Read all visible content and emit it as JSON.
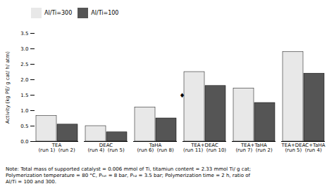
{
  "chart_data": {
    "type": "bar",
    "categories": [
      "TEA\n(run 1)  (run 2)",
      "DEAC\n(run 4)  (run 5)",
      "TaHA\n(run 6)  (run 8)",
      "TEA+DEAC\n(run 11)  (run 10)",
      "TEA+TaHA\n(run 7)  (run 2)",
      "TEA+DEAC+TaHA\n(run 5)  (run 4)"
    ],
    "series": [
      {
        "name": "Al/Ti=300",
        "color": "#e8e8e8",
        "values": [
          0.83,
          0.5,
          1.1,
          2.25,
          1.72,
          2.9
        ]
      },
      {
        "name": "Al/Ti=100",
        "color": "#555555",
        "values": [
          0.55,
          0.3,
          0.75,
          1.8,
          1.25,
          2.2
        ]
      }
    ],
    "ylabel": "Activity (kg PE/ g cat/ h/ atm)",
    "ylim": [
      0,
      3.5
    ],
    "yticks": [
      {
        "value": 0,
        "label": "0.0"
      },
      0.5,
      {
        "value": 1.0,
        "label": "1.0"
      },
      1.5,
      {
        "value": 2.0,
        "label": "2.0"
      },
      2.5,
      {
        "value": 3.0,
        "label": "3.0"
      },
      3.5
    ],
    "annotations": [
      {
        "text": "♦",
        "x": "TEA+DEAC\n(run 11)  (run 10)",
        "y": 1.43
      }
    ],
    "note": "Note: Total mass of supported catalyst = 0.006 mmol of Ti, titamiun content = 2.33 mmol Ti/ g cat;\nPolymerization temperature = 80 °C, Pₜₒₜ = 8 bar, Pₕ₂ = 3.5 bar; Polymerization time = 2 h, ratio of\nAl/Ti = 100 and 300.",
    "legend": "upper left",
    "grid": false
  }
}
